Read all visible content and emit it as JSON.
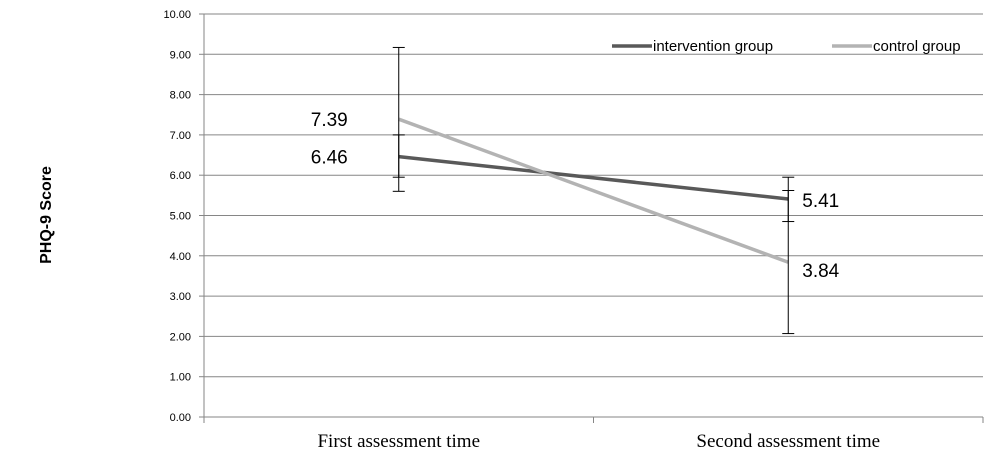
{
  "chart_data": {
    "type": "line",
    "ylabel": "PHQ-9 Score",
    "xlabel": "",
    "categories": [
      "First assessment time",
      "Second assessment time"
    ],
    "ylim": [
      0,
      10
    ],
    "yticks": [
      "0.00",
      "1.00",
      "2.00",
      "3.00",
      "4.00",
      "5.00",
      "6.00",
      "7.00",
      "8.00",
      "9.00",
      "10.00"
    ],
    "grid": true,
    "legend_position": "top-right",
    "series": [
      {
        "name": "intervention group",
        "color": "#595959",
        "values": [
          6.46,
          5.41
        ],
        "labels": [
          "6.46",
          "5.41"
        ],
        "error_bars": [
          [
            5.6,
            7.0
          ],
          [
            4.85,
            5.95
          ]
        ]
      },
      {
        "name": "control group",
        "color": "#b3b3b3",
        "values": [
          7.39,
          3.84
        ],
        "labels": [
          "7.39",
          "3.84"
        ],
        "error_bars": [
          [
            5.95,
            9.17
          ],
          [
            2.07,
            5.62
          ]
        ]
      }
    ]
  }
}
